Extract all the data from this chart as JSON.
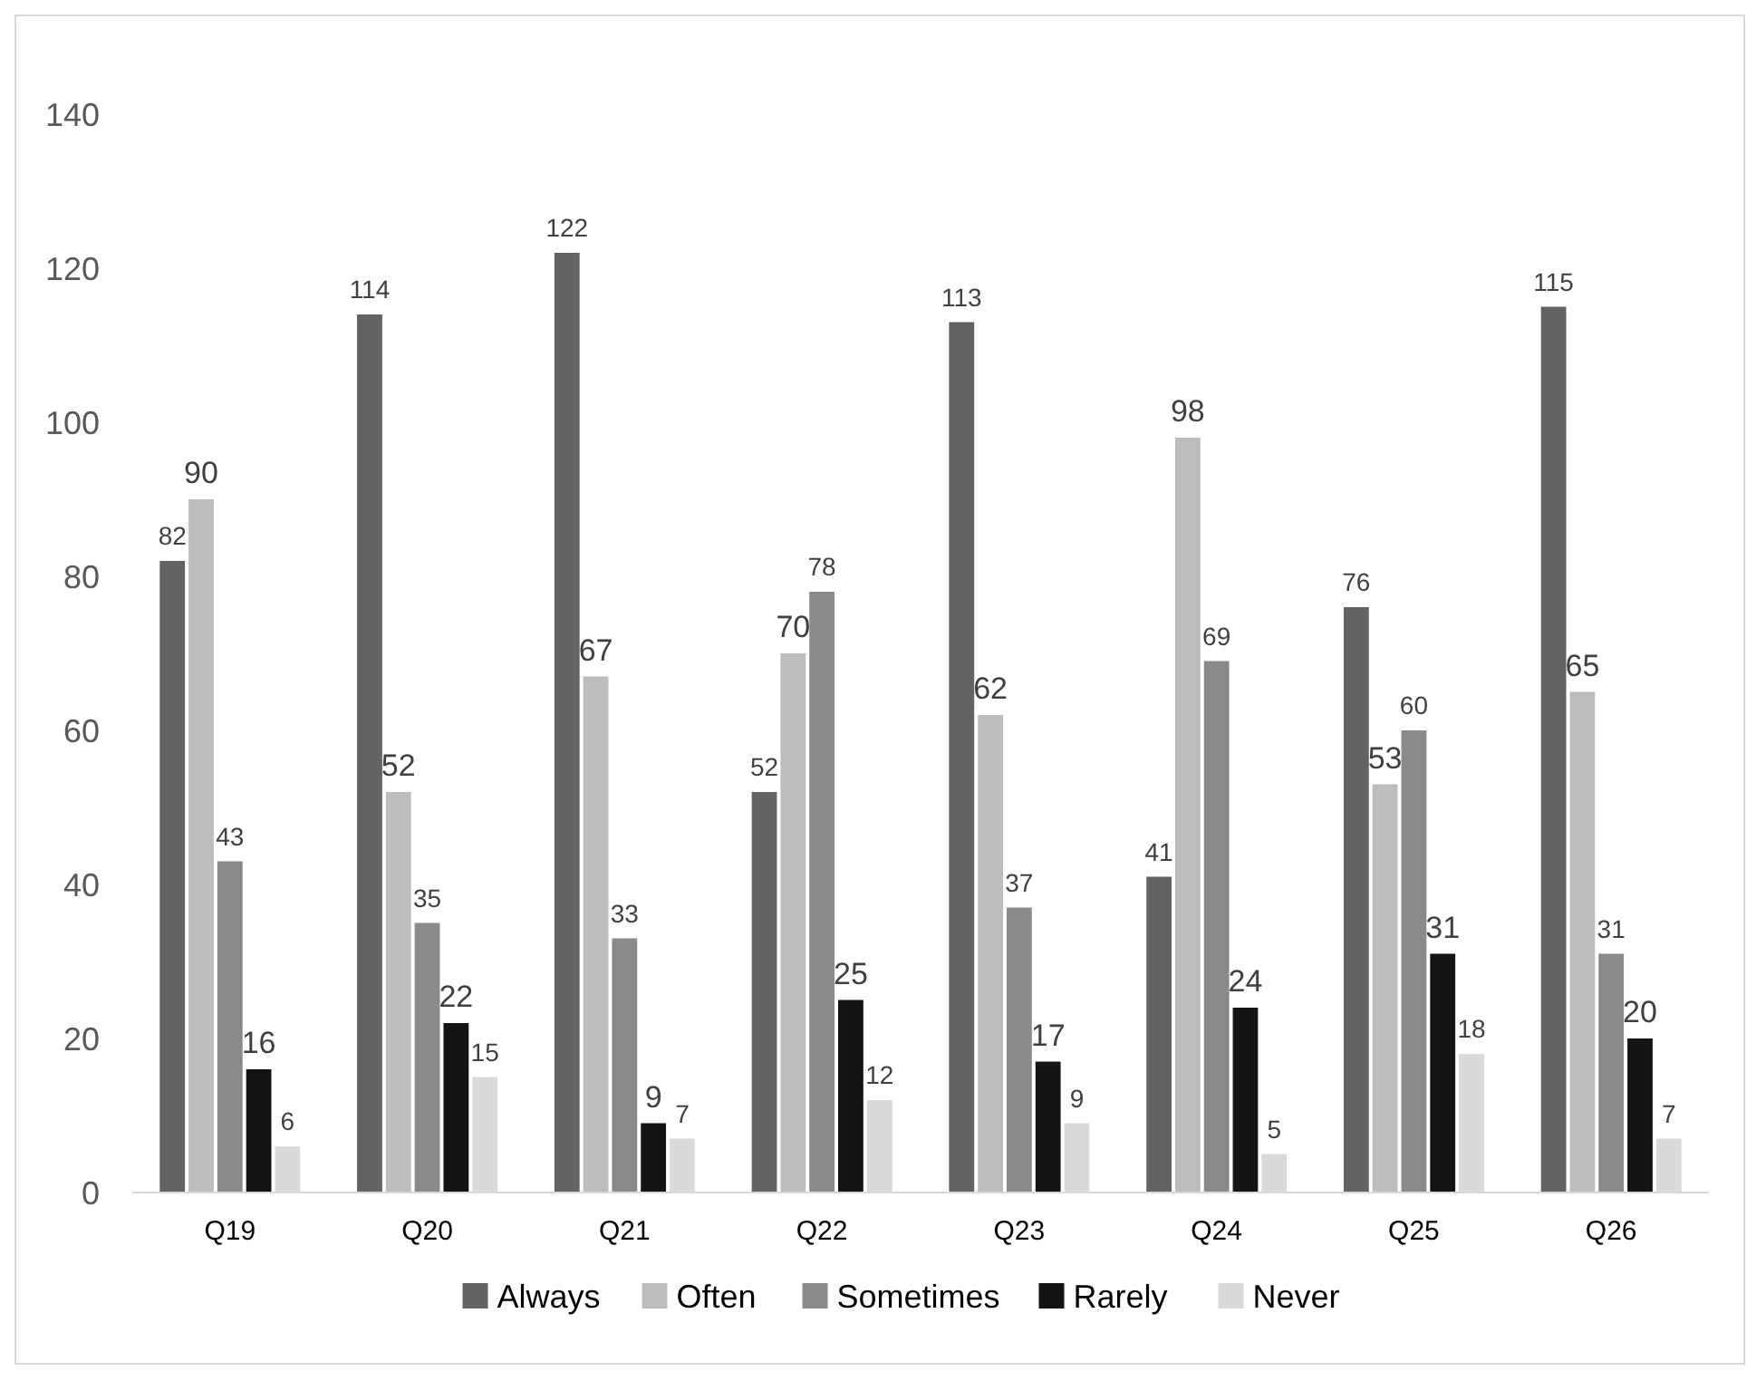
{
  "chart_data": {
    "type": "bar",
    "categories": [
      "Q19",
      "Q20",
      "Q21",
      "Q22",
      "Q23",
      "Q24",
      "Q25",
      "Q26"
    ],
    "series": [
      {
        "name": "Always",
        "color": "#636363",
        "values": [
          82,
          114,
          122,
          52,
          113,
          41,
          76,
          115
        ]
      },
      {
        "name": "Often",
        "color": "#bdbdbd",
        "values": [
          90,
          52,
          67,
          70,
          62,
          98,
          53,
          65
        ]
      },
      {
        "name": "Sometimes",
        "color": "#8a8a8a",
        "values": [
          43,
          35,
          33,
          78,
          37,
          69,
          60,
          31
        ]
      },
      {
        "name": "Rarely",
        "color": "#141414",
        "values": [
          16,
          22,
          9,
          25,
          17,
          24,
          31,
          20
        ]
      },
      {
        "name": "Never",
        "color": "#dadada",
        "values": [
          6,
          15,
          7,
          12,
          9,
          5,
          18,
          7
        ]
      }
    ],
    "ylim": [
      0,
      140
    ],
    "yticks": [
      0,
      20,
      40,
      60,
      80,
      100,
      120,
      140
    ],
    "grid": false,
    "legend": "bottom",
    "data_labels": true
  }
}
